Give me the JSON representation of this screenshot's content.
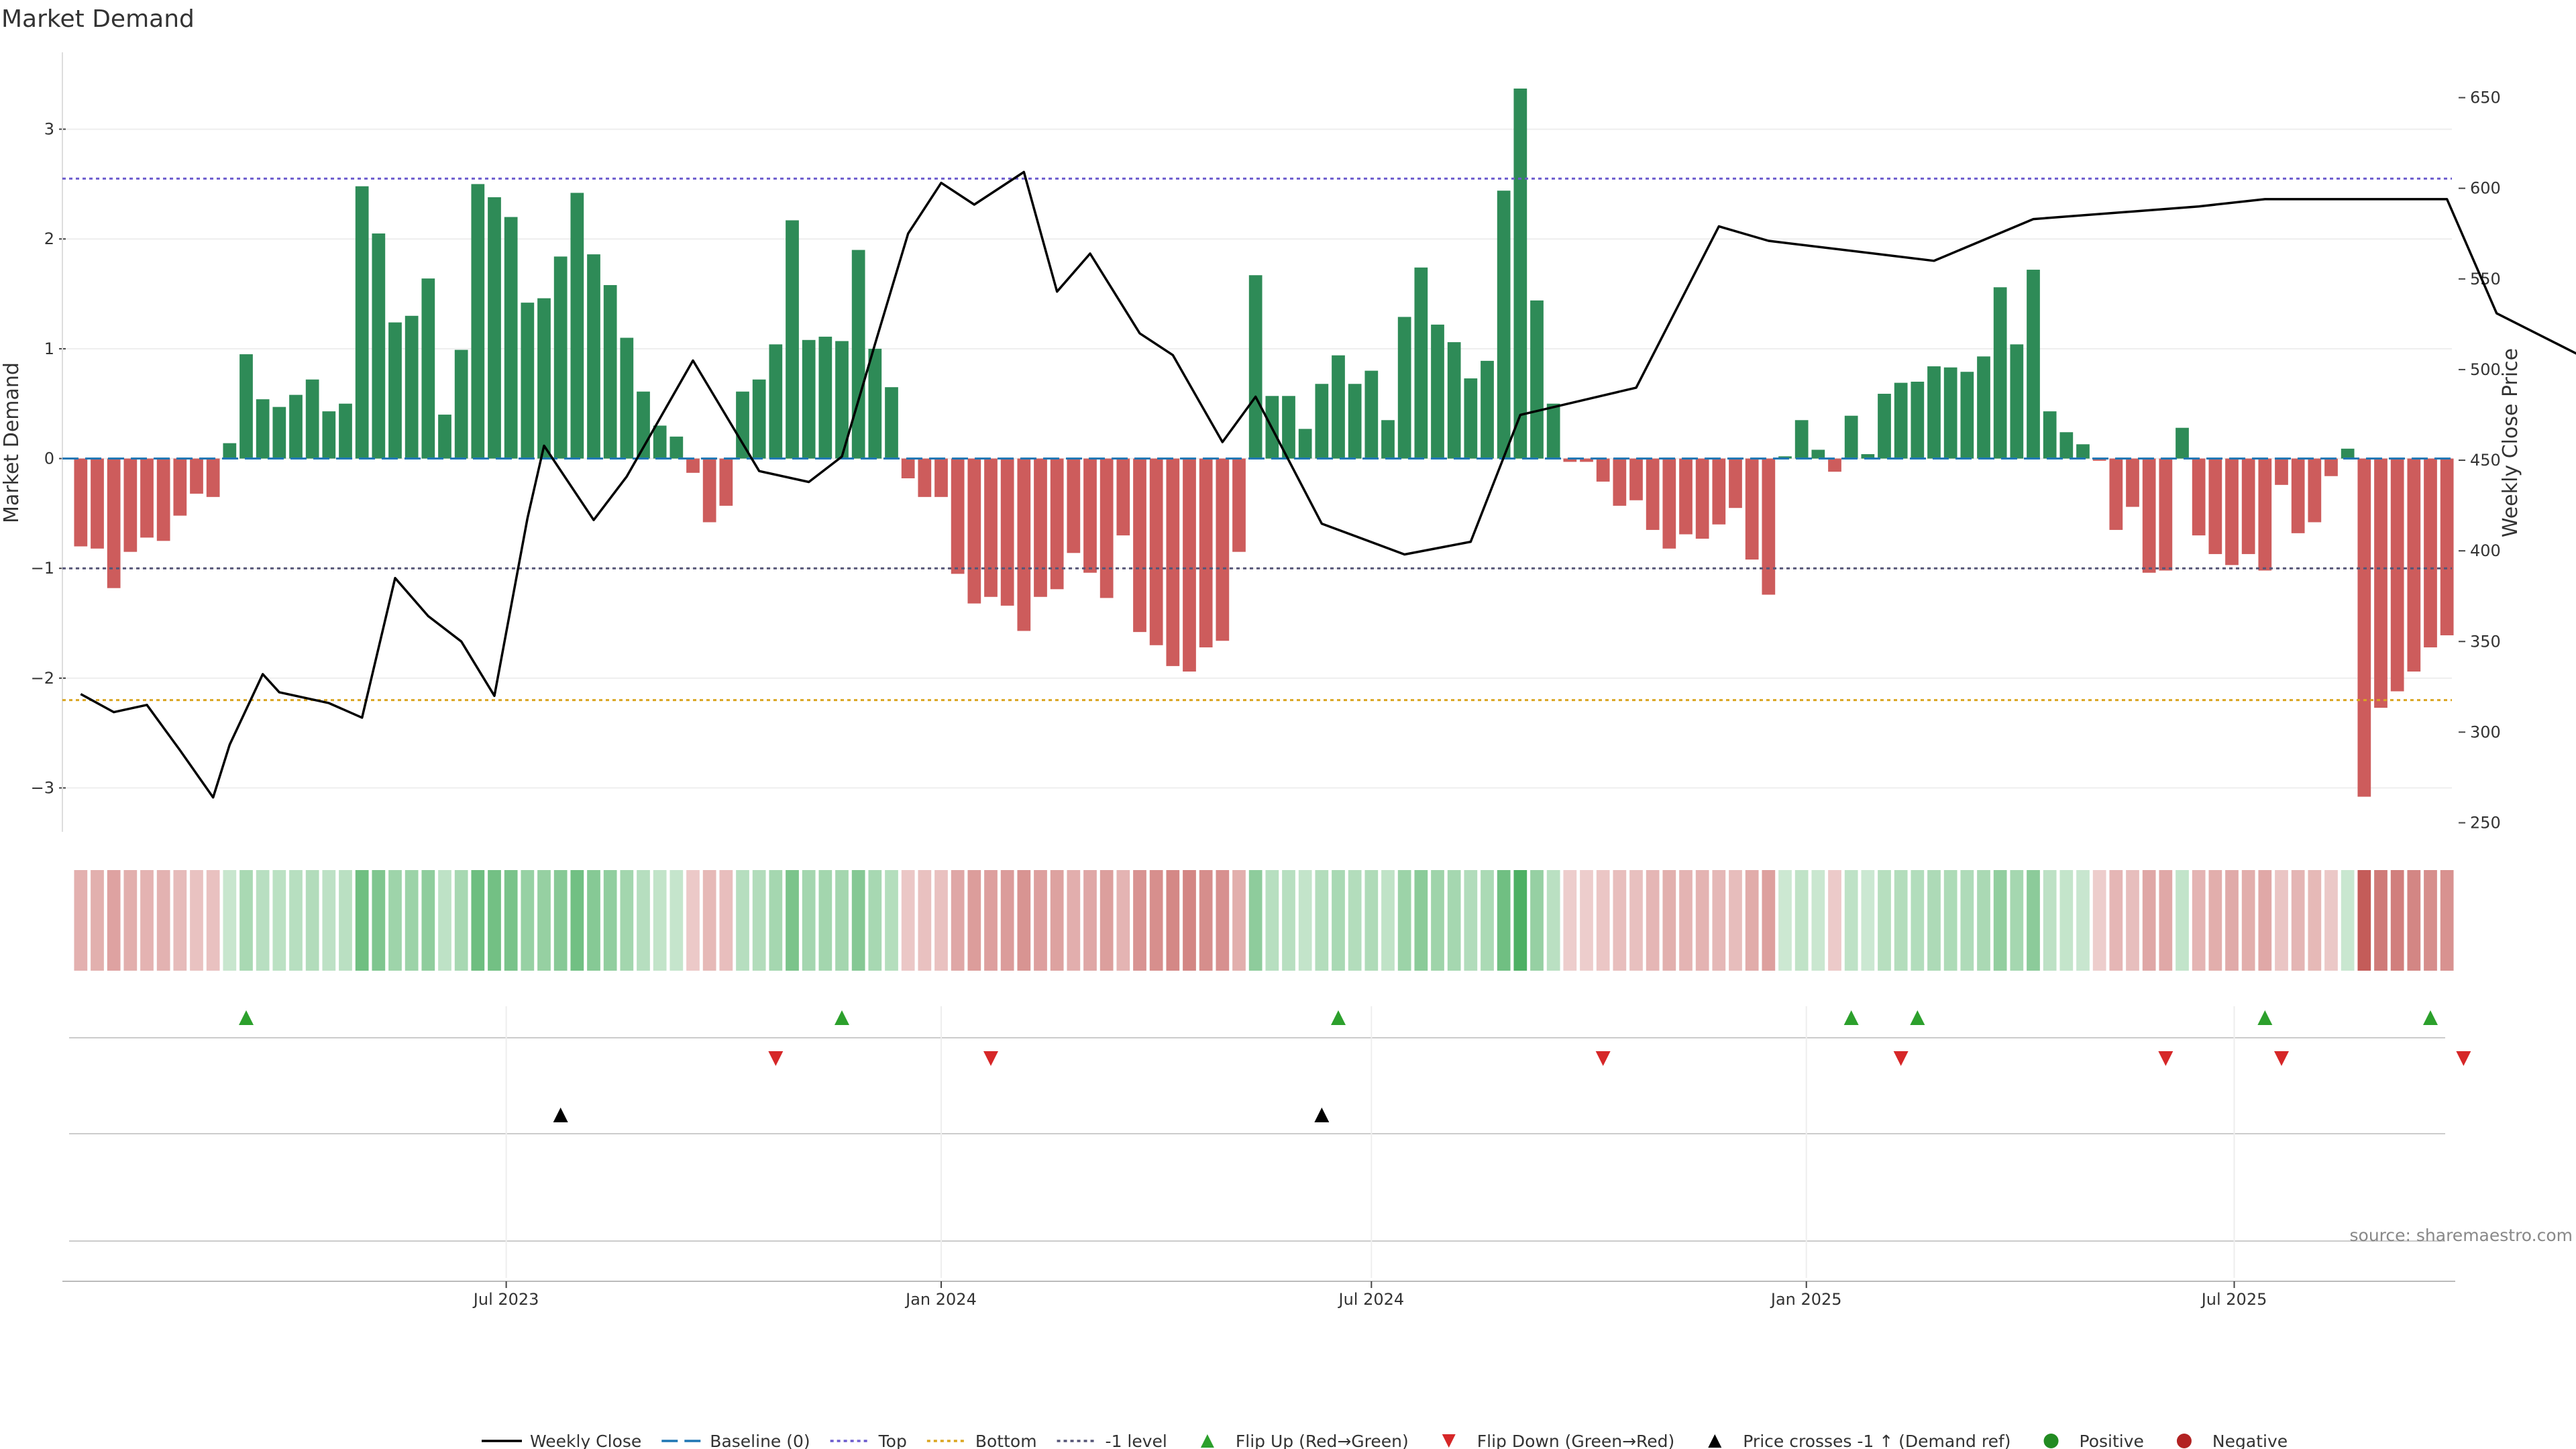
{
  "chart_data": {
    "type": "bar",
    "title": "Market Demand",
    "ylabel_left": "Market Demand",
    "ylabel_right": "Weekly Close Price",
    "source": "source: sharemaestro.com",
    "x_start": "2023-01-02",
    "x_interval": "weekly",
    "x_ticks": [
      {
        "date": "2023-07-01",
        "label": "Jul 2023"
      },
      {
        "date": "2024-01-01",
        "label": "Jan 2024"
      },
      {
        "date": "2024-07-01",
        "label": "Jul 2024"
      },
      {
        "date": "2025-01-01",
        "label": "Jan 2025"
      },
      {
        "date": "2025-07-01",
        "label": "Jul 2025"
      }
    ],
    "ylim_left": [
      -3.4,
      3.7
    ],
    "yticks_left": [
      -3,
      -2,
      -1,
      0,
      1,
      2,
      3
    ],
    "yticks_left_labels": [
      "−3",
      "−2",
      "−1",
      "0",
      "1",
      "2",
      "3"
    ],
    "ylim_right": [
      245,
      675
    ],
    "yticks_right": [
      250,
      300,
      350,
      400,
      450,
      500,
      550,
      600,
      650
    ],
    "reference_lines": {
      "baseline": 0,
      "top": 2.55,
      "bottom": -2.2,
      "minus_one": -1
    },
    "demand_values": [
      -0.8,
      -0.82,
      -1.18,
      -0.85,
      -0.72,
      -0.75,
      -0.52,
      -0.32,
      -0.35,
      0.14,
      0.95,
      0.54,
      0.47,
      0.58,
      0.72,
      0.43,
      0.5,
      2.48,
      2.05,
      1.24,
      1.3,
      1.64,
      0.4,
      0.99,
      2.5,
      2.38,
      2.2,
      1.42,
      1.46,
      1.84,
      2.42,
      1.86,
      1.58,
      1.1,
      0.61,
      0.3,
      0.2,
      -0.13,
      -0.58,
      -0.43,
      0.61,
      0.72,
      1.04,
      2.17,
      1.08,
      1.11,
      1.07,
      1.9,
      1.0,
      0.65,
      -0.18,
      -0.35,
      -0.35,
      -1.05,
      -1.32,
      -1.26,
      -1.34,
      -1.57,
      -1.26,
      -1.19,
      -0.86,
      -1.04,
      -1.27,
      -0.7,
      -1.58,
      -1.7,
      -1.89,
      -1.94,
      -1.72,
      -1.66,
      -0.85,
      1.67,
      0.57,
      0.57,
      0.27,
      0.68,
      0.94,
      0.68,
      0.8,
      0.35,
      1.29,
      1.74,
      1.22,
      1.06,
      0.73,
      0.89,
      2.44,
      3.37,
      1.44,
      0.5,
      -0.03,
      -0.03,
      -0.21,
      -0.43,
      -0.38,
      -0.65,
      -0.82,
      -0.69,
      -0.73,
      -0.6,
      -0.45,
      -0.92,
      -1.24,
      0.02,
      0.35,
      0.08,
      -0.12,
      0.39,
      0.04,
      0.59,
      0.69,
      0.7,
      0.84,
      0.83,
      0.79,
      0.93,
      1.56,
      1.04,
      1.72,
      0.43,
      0.24,
      0.13,
      -0.02,
      -0.65,
      -0.44,
      -1.04,
      -1.02,
      0.28,
      -0.7,
      -0.87,
      -0.97,
      -0.87,
      -1.02,
      -0.24,
      -0.68,
      -0.58,
      -0.16,
      0.09,
      -3.08,
      -2.27,
      -2.12,
      -1.94,
      -1.72,
      -1.61
    ],
    "close_series": [
      {
        "date": "2023-01-02",
        "value": 321
      },
      {
        "date": "2023-01-16",
        "value": 311
      },
      {
        "date": "2023-01-30",
        "value": 315
      },
      {
        "date": "2023-02-13",
        "value": 290
      },
      {
        "date": "2023-02-27",
        "value": 264
      },
      {
        "date": "2023-03-06",
        "value": 293
      },
      {
        "date": "2023-03-20",
        "value": 332
      },
      {
        "date": "2023-03-27",
        "value": 322
      },
      {
        "date": "2023-04-17",
        "value": 316
      },
      {
        "date": "2023-05-01",
        "value": 308
      },
      {
        "date": "2023-05-15",
        "value": 385
      },
      {
        "date": "2023-05-29",
        "value": 364
      },
      {
        "date": "2023-06-12",
        "value": 350
      },
      {
        "date": "2023-06-26",
        "value": 320
      },
      {
        "date": "2023-07-10",
        "value": 418
      },
      {
        "date": "2023-07-17",
        "value": 458
      },
      {
        "date": "2023-08-07",
        "value": 417
      },
      {
        "date": "2023-08-21",
        "value": 441
      },
      {
        "date": "2023-09-18",
        "value": 505
      },
      {
        "date": "2023-10-16",
        "value": 444
      },
      {
        "date": "2023-11-06",
        "value": 438
      },
      {
        "date": "2023-11-20",
        "value": 452
      },
      {
        "date": "2023-12-04",
        "value": 514
      },
      {
        "date": "2023-12-18",
        "value": 575
      },
      {
        "date": "2024-01-01",
        "value": 603
      },
      {
        "date": "2024-01-15",
        "value": 591
      },
      {
        "date": "2024-02-05",
        "value": 609
      },
      {
        "date": "2024-02-19",
        "value": 543
      },
      {
        "date": "2024-03-04",
        "value": 564
      },
      {
        "date": "2024-03-25",
        "value": 520
      },
      {
        "date": "2024-04-08",
        "value": 508
      },
      {
        "date": "2024-04-29",
        "value": 460
      },
      {
        "date": "2024-05-13",
        "value": 485
      },
      {
        "date": "2024-06-10",
        "value": 415
      },
      {
        "date": "2024-07-15",
        "value": 398
      },
      {
        "date": "2024-08-12",
        "value": 405
      },
      {
        "date": "2024-09-02",
        "value": 475
      },
      {
        "date": "2024-10-21",
        "value": 490
      },
      {
        "date": "2024-11-25",
        "value": 579
      },
      {
        "date": "2024-12-16",
        "value": 571
      },
      {
        "date": "2025-02-24",
        "value": 560
      },
      {
        "date": "2025-04-07",
        "value": 583
      },
      {
        "date": "2025-06-16",
        "value": 590
      },
      {
        "date": "2025-07-14",
        "value": 594
      },
      {
        "date": "2025-09-29",
        "value": 594
      },
      {
        "date": "2025-10-20",
        "value": 531
      },
      {
        "date": "2025-11-24",
        "value": 508
      }
    ],
    "flip_up_dates": [
      "2023-03-13",
      "2023-11-20",
      "2024-06-17",
      "2025-01-20",
      "2025-02-17",
      "2025-07-14",
      "2025-09-22"
    ],
    "flip_down_dates": [
      "2023-10-23",
      "2024-01-22",
      "2024-10-07",
      "2025-02-10",
      "2025-06-02",
      "2025-07-21",
      "2025-10-06"
    ],
    "price_cross_dates": [
      "2023-07-24",
      "2024-06-10"
    ],
    "colors": {
      "positive": "#2e8b57",
      "negative": "#cd5c5c",
      "close": "#000000",
      "baseline": "#1f77b4",
      "top": "#6a5acd",
      "bottom": "#daa520",
      "minus_one": "#555577",
      "flip_up": "#2ca02c",
      "flip_down": "#d62728",
      "price_cross": "#000000",
      "legend_positive": "#228b22",
      "legend_negative": "#b22222"
    },
    "legend": [
      {
        "label": "Weekly Close",
        "kind": "line",
        "color": "#000000",
        "dash": "none"
      },
      {
        "label": "Baseline (0)",
        "kind": "line",
        "color": "#1f77b4",
        "dash": "24,10"
      },
      {
        "label": "Top",
        "kind": "line",
        "color": "#6a5acd",
        "dash": "5,5"
      },
      {
        "label": "Bottom",
        "kind": "line",
        "color": "#daa520",
        "dash": "5,5"
      },
      {
        "label": "-1 level",
        "kind": "line",
        "color": "#555577",
        "dash": "5,5"
      },
      {
        "label": "Flip Up (Red→Green)",
        "kind": "tri-up",
        "color": "#2ca02c"
      },
      {
        "label": "Flip Down (Green→Red)",
        "kind": "tri-down",
        "color": "#d62728"
      },
      {
        "label": "Price crosses -1 ↑ (Demand ref)",
        "kind": "tri-up",
        "color": "#000000"
      },
      {
        "label": "Positive",
        "kind": "dot",
        "color": "#228b22"
      },
      {
        "label": "Negative",
        "kind": "dot",
        "color": "#b22222"
      }
    ]
  }
}
